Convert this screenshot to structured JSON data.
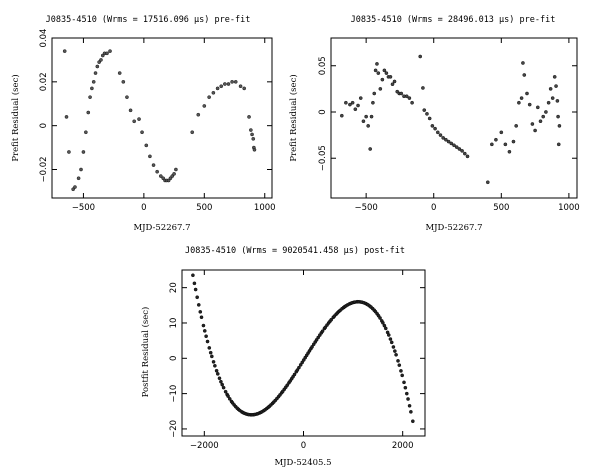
{
  "chart_data": [
    {
      "type": "scatter",
      "title": "J0835-4510 (Wrms = 17516.096 μs) pre-fit",
      "xlabel": "MJD-52267.7",
      "ylabel": "Prefit Residual (sec)",
      "xlim": [
        -760,
        1060
      ],
      "ylim": [
        -0.033,
        0.04
      ],
      "xticks": [
        -500,
        0,
        500,
        1000
      ],
      "xtick_labels": [
        "−500",
        "0",
        "500",
        "1000"
      ],
      "yticks": [
        -0.02,
        0,
        0.02,
        0.04
      ],
      "ytick_labels": [
        "−0.02",
        "0",
        "0.02",
        "0.04"
      ],
      "marker_color": "#555555",
      "points": [
        [
          -655,
          0.034
        ],
        [
          -640,
          0.004
        ],
        [
          -620,
          -0.012
        ],
        [
          -585,
          -0.029
        ],
        [
          -570,
          -0.028
        ],
        [
          -540,
          -0.024
        ],
        [
          -520,
          -0.02
        ],
        [
          -500,
          -0.012
        ],
        [
          -480,
          -0.003
        ],
        [
          -460,
          0.006
        ],
        [
          -445,
          0.013
        ],
        [
          -430,
          0.017
        ],
        [
          -415,
          0.02
        ],
        [
          -400,
          0.024
        ],
        [
          -385,
          0.027
        ],
        [
          -370,
          0.029
        ],
        [
          -355,
          0.03
        ],
        [
          -340,
          0.032
        ],
        [
          -325,
          0.033
        ],
        [
          -305,
          0.033
        ],
        [
          -280,
          0.034
        ],
        [
          -200,
          0.024
        ],
        [
          -170,
          0.02
        ],
        [
          -140,
          0.013
        ],
        [
          -110,
          0.007
        ],
        [
          -80,
          0.002
        ],
        [
          -40,
          0.003
        ],
        [
          -15,
          -0.003
        ],
        [
          20,
          -0.009
        ],
        [
          50,
          -0.014
        ],
        [
          80,
          -0.018
        ],
        [
          110,
          -0.021
        ],
        [
          140,
          -0.023
        ],
        [
          160,
          -0.024
        ],
        [
          175,
          -0.025
        ],
        [
          190,
          -0.025
        ],
        [
          205,
          -0.025
        ],
        [
          220,
          -0.024
        ],
        [
          235,
          -0.023
        ],
        [
          250,
          -0.022
        ],
        [
          265,
          -0.02
        ],
        [
          400,
          -0.003
        ],
        [
          450,
          0.005
        ],
        [
          500,
          0.009
        ],
        [
          540,
          0.013
        ],
        [
          575,
          0.015
        ],
        [
          610,
          0.017
        ],
        [
          640,
          0.018
        ],
        [
          670,
          0.019
        ],
        [
          700,
          0.019
        ],
        [
          730,
          0.02
        ],
        [
          760,
          0.02
        ],
        [
          800,
          0.018
        ],
        [
          830,
          0.017
        ],
        [
          870,
          0.004
        ],
        [
          885,
          -0.002
        ],
        [
          895,
          -0.004
        ],
        [
          905,
          -0.006
        ],
        [
          910,
          -0.01
        ],
        [
          915,
          -0.011
        ]
      ]
    },
    {
      "type": "scatter",
      "title": "J0835-4510 (Wrms = 28496.013 μs) pre-fit",
      "xlabel": "MJD-52267.7",
      "ylabel": "Prefit Residual (sec)",
      "xlim": [
        -760,
        1060
      ],
      "ylim": [
        -0.093,
        0.08
      ],
      "xticks": [
        -500,
        0,
        500,
        1000
      ],
      "xtick_labels": [
        "−500",
        "0",
        "500",
        "1000"
      ],
      "yticks": [
        -0.05,
        0,
        0.05
      ],
      "ytick_labels": [
        "−0.05",
        "0",
        "0.05"
      ],
      "marker_color": "#444444",
      "points": [
        [
          -680,
          -0.004
        ],
        [
          -650,
          0.01
        ],
        [
          -620,
          0.008
        ],
        [
          -600,
          0.01
        ],
        [
          -580,
          0.003
        ],
        [
          -560,
          0.007
        ],
        [
          -540,
          0.015
        ],
        [
          -520,
          -0.01
        ],
        [
          -500,
          -0.005
        ],
        [
          -485,
          -0.015
        ],
        [
          -470,
          -0.04
        ],
        [
          -460,
          -0.005
        ],
        [
          -450,
          0.01
        ],
        [
          -440,
          0.02
        ],
        [
          -430,
          0.045
        ],
        [
          -420,
          0.052
        ],
        [
          -410,
          0.042
        ],
        [
          -395,
          0.025
        ],
        [
          -380,
          0.035
        ],
        [
          -365,
          0.045
        ],
        [
          -350,
          0.042
        ],
        [
          -335,
          0.038
        ],
        [
          -320,
          0.038
        ],
        [
          -305,
          0.03
        ],
        [
          -290,
          0.033
        ],
        [
          -270,
          0.022
        ],
        [
          -255,
          0.02
        ],
        [
          -240,
          0.02
        ],
        [
          -220,
          0.017
        ],
        [
          -200,
          0.017
        ],
        [
          -180,
          0.015
        ],
        [
          -160,
          0.01
        ],
        [
          -100,
          0.06
        ],
        [
          -80,
          0.026
        ],
        [
          -70,
          0.002
        ],
        [
          -50,
          -0.002
        ],
        [
          -30,
          -0.007
        ],
        [
          -10,
          -0.015
        ],
        [
          10,
          -0.018
        ],
        [
          30,
          -0.022
        ],
        [
          50,
          -0.025
        ],
        [
          70,
          -0.028
        ],
        [
          90,
          -0.03
        ],
        [
          110,
          -0.032
        ],
        [
          130,
          -0.034
        ],
        [
          150,
          -0.036
        ],
        [
          170,
          -0.038
        ],
        [
          190,
          -0.04
        ],
        [
          210,
          -0.042
        ],
        [
          230,
          -0.045
        ],
        [
          250,
          -0.048
        ],
        [
          400,
          -0.076
        ],
        [
          430,
          -0.035
        ],
        [
          460,
          -0.03
        ],
        [
          500,
          -0.022
        ],
        [
          530,
          -0.035
        ],
        [
          560,
          -0.043
        ],
        [
          590,
          -0.032
        ],
        [
          610,
          -0.015
        ],
        [
          630,
          0.01
        ],
        [
          650,
          0.015
        ],
        [
          660,
          0.053
        ],
        [
          670,
          0.04
        ],
        [
          690,
          0.02
        ],
        [
          710,
          0.008
        ],
        [
          730,
          -0.013
        ],
        [
          750,
          -0.02
        ],
        [
          770,
          0.005
        ],
        [
          790,
          -0.01
        ],
        [
          810,
          -0.005
        ],
        [
          830,
          0.0
        ],
        [
          850,
          0.01
        ],
        [
          865,
          0.025
        ],
        [
          880,
          0.015
        ],
        [
          895,
          0.038
        ],
        [
          905,
          0.028
        ],
        [
          915,
          0.012
        ],
        [
          920,
          -0.005
        ],
        [
          925,
          -0.035
        ],
        [
          930,
          -0.015
        ]
      ]
    },
    {
      "type": "scatter",
      "title": "J0835-4510 (Wrms = 9020541.458 μs) post-fit",
      "xlabel": "MJD-52405.5",
      "ylabel": "Postfit Residual (sec)",
      "xlim": [
        -2450,
        2450
      ],
      "ylim": [
        -22,
        25
      ],
      "xticks": [
        -2000,
        0,
        2000
      ],
      "xtick_labels": [
        "−2000",
        "0",
        "2000"
      ],
      "yticks": [
        -20,
        -10,
        0,
        10,
        20
      ],
      "ytick_labels": [
        "−20",
        "−10",
        "0",
        "10",
        "20"
      ],
      "marker_color": "#222222",
      "curve": {
        "formula": "cubic through (-2230, 23.5), (-1040, -16), (1090, 16), (2200, -17.5)",
        "x_min": -2230,
        "x_max": 2200,
        "point_count": 150
      }
    }
  ]
}
